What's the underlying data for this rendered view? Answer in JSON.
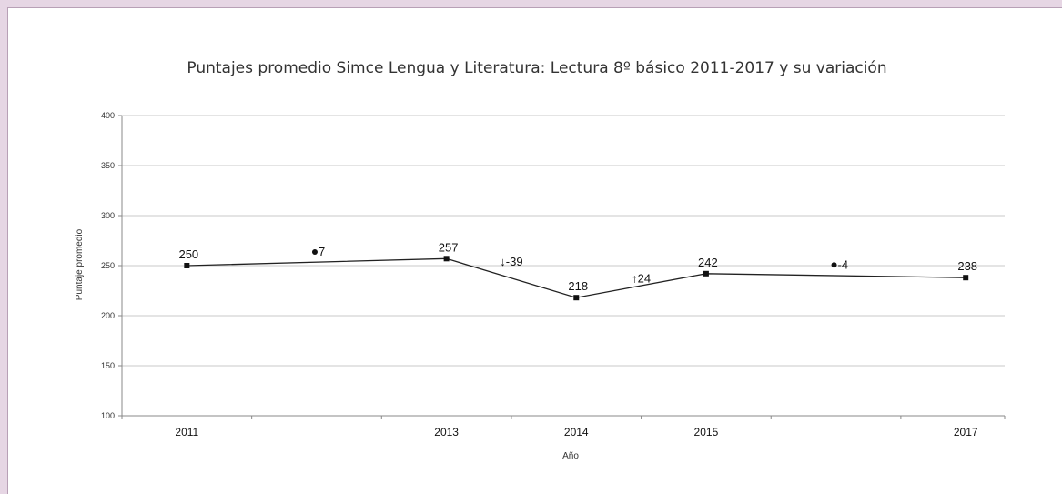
{
  "chart_data": {
    "type": "line",
    "title": "Puntajes promedio Simce Lengua y Literatura: Lectura 8º básico 2011-2017 y su variación",
    "xlabel": "Año",
    "ylabel": "Puntaje promedio",
    "ylim": [
      100,
      400
    ],
    "yticks": [
      "100",
      "150",
      "200",
      "250",
      "300",
      "350",
      "400"
    ],
    "grid": true,
    "x": [
      2011,
      2013,
      2014,
      2015,
      2017
    ],
    "x_tick_labels": [
      "2011",
      "2013",
      "2014",
      "2015",
      "2017"
    ],
    "series": [
      {
        "values": [
          250,
          257,
          218,
          242,
          238
        ],
        "labels": [
          "250",
          "257",
          "218",
          "242",
          "238"
        ]
      }
    ],
    "variations": [
      {
        "between": [
          2011,
          2013
        ],
        "marker": "dot",
        "text": "7",
        "y": 260
      },
      {
        "between": [
          2013,
          2014
        ],
        "marker": "down-arrow",
        "text": "↓-39",
        "y": 250
      },
      {
        "between": [
          2014,
          2015
        ],
        "marker": "up-arrow",
        "text": "↑24",
        "y": 233
      },
      {
        "between": [
          2015,
          2017
        ],
        "marker": "dot",
        "text": "-4",
        "y": 247
      }
    ]
  }
}
